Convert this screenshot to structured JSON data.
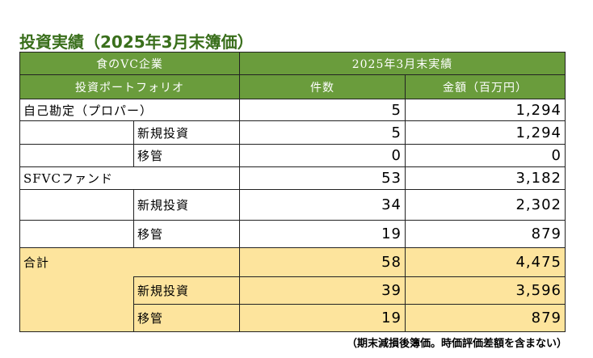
{
  "title": "投資実績（2025年3月末簿価）",
  "header": {
    "left_top": "食のVC企業",
    "left_bottom": "投資ポートフォリオ",
    "right_top": "2025年3月末実績",
    "col_count": "件数",
    "col_amount": "金額（百万円）"
  },
  "rows": {
    "self": {
      "label": "自己勘定（プロパー）",
      "count": "5",
      "amount": "1,294"
    },
    "self_new": {
      "label": "新規投資",
      "count": "5",
      "amount": "1,294"
    },
    "self_transfer": {
      "label": "移管",
      "count": "0",
      "amount": "0"
    },
    "fund": {
      "label": "SFVCファンド",
      "count": "53",
      "amount": "3,182"
    },
    "fund_new": {
      "label": "新規投資",
      "count": "34",
      "amount": "2,302"
    },
    "fund_transfer": {
      "label": "移管",
      "count": "19",
      "amount": "879"
    },
    "total": {
      "label": "合計",
      "count": "58",
      "amount": "4,475"
    },
    "total_new": {
      "label": "新規投資",
      "count": "39",
      "amount": "3,596"
    },
    "total_transfer": {
      "label": "移管",
      "count": "19",
      "amount": "879"
    }
  },
  "note": "（期末減損後簿価。時価評価差額を含まない）",
  "colors": {
    "title": "#3a6f1c",
    "header_bg": "#6a9c3c",
    "total_bg": "#fde49d"
  }
}
